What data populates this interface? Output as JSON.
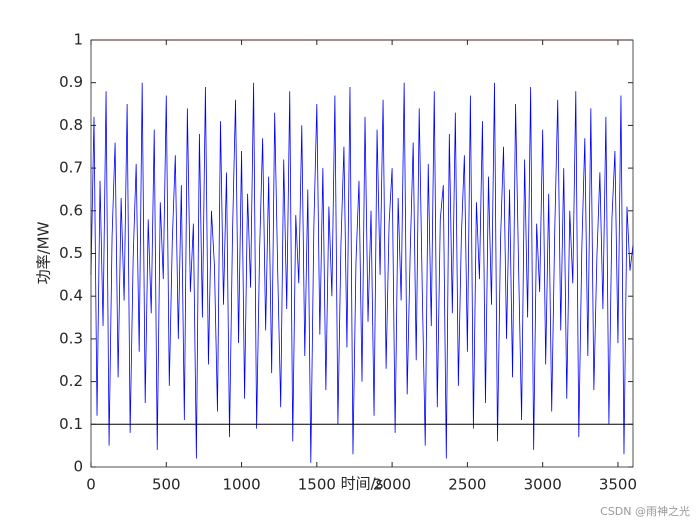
{
  "chart_data": {
    "type": "line",
    "xlabel": "时间/s",
    "ylabel": "功率/MW",
    "watermark": "CSDN @雨神之光",
    "x": [
      0,
      20,
      40,
      60,
      80,
      100,
      120,
      140,
      160,
      180,
      200,
      220,
      240,
      260,
      280,
      300,
      320,
      340,
      360,
      380,
      400,
      420,
      440,
      460,
      480,
      500,
      520,
      540,
      560,
      580,
      600,
      620,
      640,
      660,
      680,
      700,
      720,
      740,
      760,
      780,
      800,
      820,
      840,
      860,
      880,
      900,
      920,
      940,
      960,
      980,
      1000,
      1020,
      1040,
      1060,
      1080,
      1100,
      1120,
      1140,
      1160,
      1180,
      1200,
      1220,
      1240,
      1260,
      1280,
      1300,
      1320,
      1340,
      1360,
      1380,
      1400,
      1420,
      1440,
      1460,
      1480,
      1500,
      1520,
      1540,
      1560,
      1580,
      1600,
      1620,
      1640,
      1660,
      1680,
      1700,
      1720,
      1740,
      1760,
      1780,
      1800,
      1820,
      1840,
      1860,
      1880,
      1900,
      1920,
      1940,
      1960,
      1980,
      2000,
      2020,
      2040,
      2060,
      2080,
      2100,
      2120,
      2140,
      2160,
      2180,
      2200,
      2220,
      2240,
      2260,
      2280,
      2300,
      2320,
      2340,
      2360,
      2380,
      2400,
      2420,
      2440,
      2460,
      2480,
      2500,
      2520,
      2540,
      2560,
      2580,
      2600,
      2620,
      2640,
      2660,
      2680,
      2700,
      2720,
      2740,
      2760,
      2780,
      2800,
      2820,
      2840,
      2860,
      2880,
      2900,
      2920,
      2940,
      2960,
      2980,
      3000,
      3020,
      3040,
      3060,
      3080,
      3100,
      3120,
      3140,
      3160,
      3180,
      3200,
      3220,
      3240,
      3260,
      3280,
      3300,
      3320,
      3340,
      3360,
      3380,
      3400,
      3420,
      3440,
      3460,
      3480,
      3500,
      3520,
      3540,
      3560,
      3580,
      3600
    ],
    "series": [
      {
        "color": "#0000ff",
        "values": [
          0.45,
          0.82,
          0.12,
          0.67,
          0.33,
          0.88,
          0.05,
          0.54,
          0.76,
          0.21,
          0.63,
          0.39,
          0.85,
          0.08,
          0.49,
          0.71,
          0.27,
          0.9,
          0.15,
          0.58,
          0.36,
          0.79,
          0.04,
          0.62,
          0.44,
          0.87,
          0.19,
          0.53,
          0.73,
          0.3,
          0.66,
          0.11,
          0.84,
          0.41,
          0.57,
          0.02,
          0.78,
          0.35,
          0.89,
          0.24,
          0.6,
          0.47,
          0.13,
          0.81,
          0.38,
          0.69,
          0.07,
          0.55,
          0.86,
          0.29,
          0.74,
          0.16,
          0.64,
          0.42,
          0.9,
          0.09,
          0.51,
          0.77,
          0.32,
          0.68,
          0.22,
          0.83,
          0.46,
          0.14,
          0.72,
          0.37,
          0.88,
          0.06,
          0.59,
          0.43,
          0.8,
          0.26,
          0.65,
          0.01,
          0.56,
          0.85,
          0.31,
          0.7,
          0.18,
          0.61,
          0.4,
          0.87,
          0.1,
          0.52,
          0.75,
          0.28,
          0.89,
          0.03,
          0.48,
          0.67,
          0.2,
          0.82,
          0.34,
          0.6,
          0.12,
          0.79,
          0.45,
          0.86,
          0.23,
          0.57,
          0.7,
          0.08,
          0.63,
          0.39,
          0.9,
          0.17,
          0.5,
          0.76,
          0.25,
          0.84,
          0.42,
          0.05,
          0.71,
          0.33,
          0.88,
          0.14,
          0.58,
          0.66,
          0.02,
          0.78,
          0.36,
          0.83,
          0.19,
          0.54,
          0.73,
          0.27,
          0.87,
          0.09,
          0.62,
          0.44,
          0.81,
          0.15,
          0.68,
          0.38,
          0.9,
          0.06,
          0.53,
          0.75,
          0.3,
          0.65,
          0.21,
          0.85,
          0.47,
          0.11,
          0.72,
          0.35,
          0.89,
          0.04,
          0.57,
          0.41,
          0.79,
          0.24,
          0.64,
          0.13,
          0.55,
          0.86,
          0.32,
          0.7,
          0.16,
          0.6,
          0.43,
          0.88,
          0.07,
          0.51,
          0.77,
          0.26,
          0.84,
          0.18,
          0.49,
          0.69,
          0.37,
          0.82,
          0.1,
          0.58,
          0.74,
          0.29,
          0.87,
          0.03,
          0.61,
          0.46,
          0.52
        ]
      }
    ],
    "hlines": [
      {
        "value": 1,
        "color": "#ff0000"
      },
      {
        "value": 0.1,
        "color": "#000000"
      }
    ],
    "xlim": [
      0,
      3600
    ],
    "xticks": [
      0,
      500,
      1000,
      1500,
      2000,
      2500,
      3000,
      3500
    ],
    "ylim": [
      0,
      1
    ],
    "yticks": [
      0,
      0.1,
      0.2,
      0.3,
      0.4,
      0.5,
      0.6,
      0.7,
      0.8,
      0.9,
      1
    ]
  }
}
